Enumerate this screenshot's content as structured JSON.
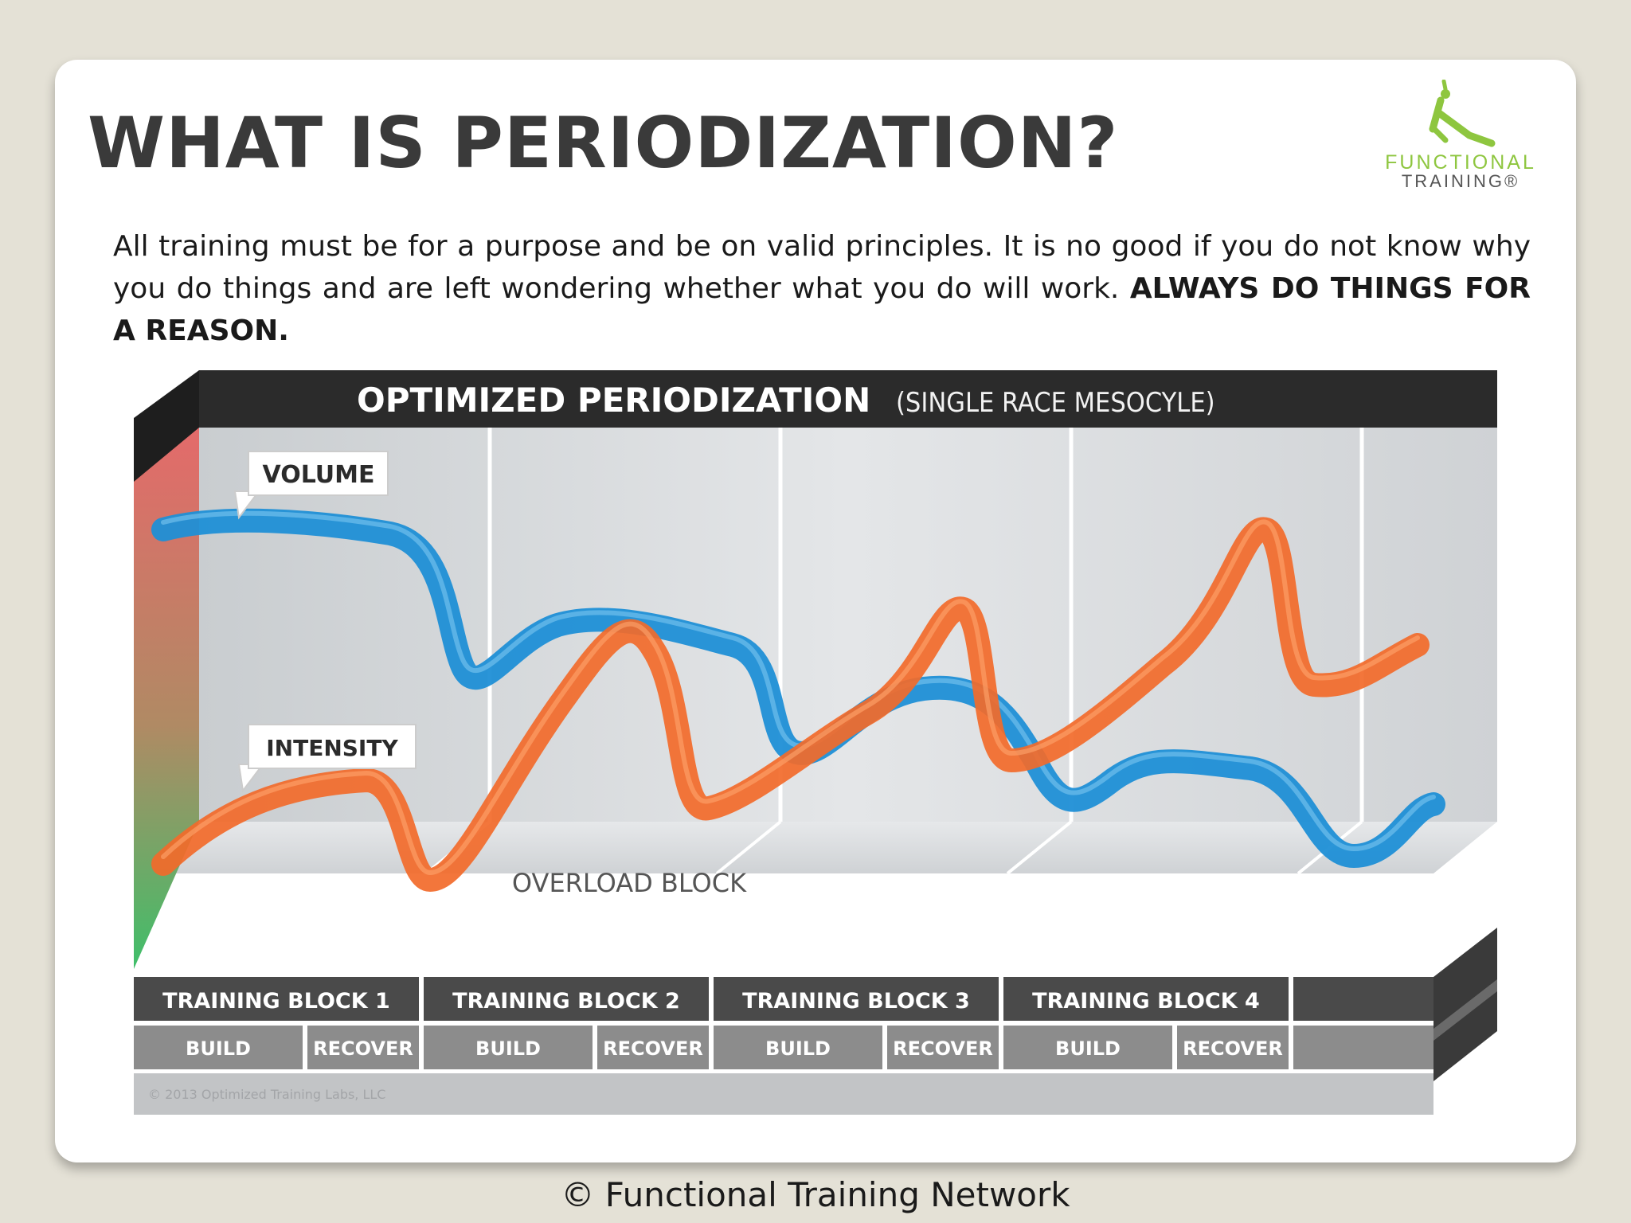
{
  "slide": {
    "title": "WHAT IS PERIODIZATION?",
    "intro_text": "All training must be for a purpose and be on valid principles. It is no good if you do not know why you do things and are left wondering whether what you do will work.",
    "intro_emphasis": "ALWAYS DO THINGS FOR A REASON.",
    "footer": "© Functional Training Network"
  },
  "logo": {
    "line1": "FUNCTIONAL",
    "line2": "TRAINING®",
    "icon": "yoga-figure-icon",
    "color": "#8ec63f"
  },
  "diagram": {
    "title": "OPTIMIZED PERIODIZATION",
    "subtitle": "(SINGLE RACE MESOCYLE)",
    "volume_label": "VOLUME",
    "intensity_label": "INTENSITY",
    "overload_label": "OVERLOAD BLOCK",
    "copyright": "© 2013 Optimized Training Labs, LLC",
    "blocks": [
      {
        "name": "TRAINING BLOCK 1",
        "phases": [
          "BUILD",
          "RECOVER"
        ]
      },
      {
        "name": "TRAINING BLOCK 2",
        "phases": [
          "BUILD",
          "RECOVER"
        ]
      },
      {
        "name": "TRAINING BLOCK 3",
        "phases": [
          "BUILD",
          "RECOVER"
        ]
      },
      {
        "name": "TRAINING BLOCK 4",
        "phases": [
          "BUILD",
          "RECOVER"
        ]
      }
    ],
    "colors": {
      "volume": "#1f8fd6",
      "intensity": "#f26a2a",
      "header": "#2b2b2b",
      "panel": "#d7dadc",
      "gradient_top": "#e46a6a",
      "gradient_bottom": "#3fbf6a"
    }
  }
}
